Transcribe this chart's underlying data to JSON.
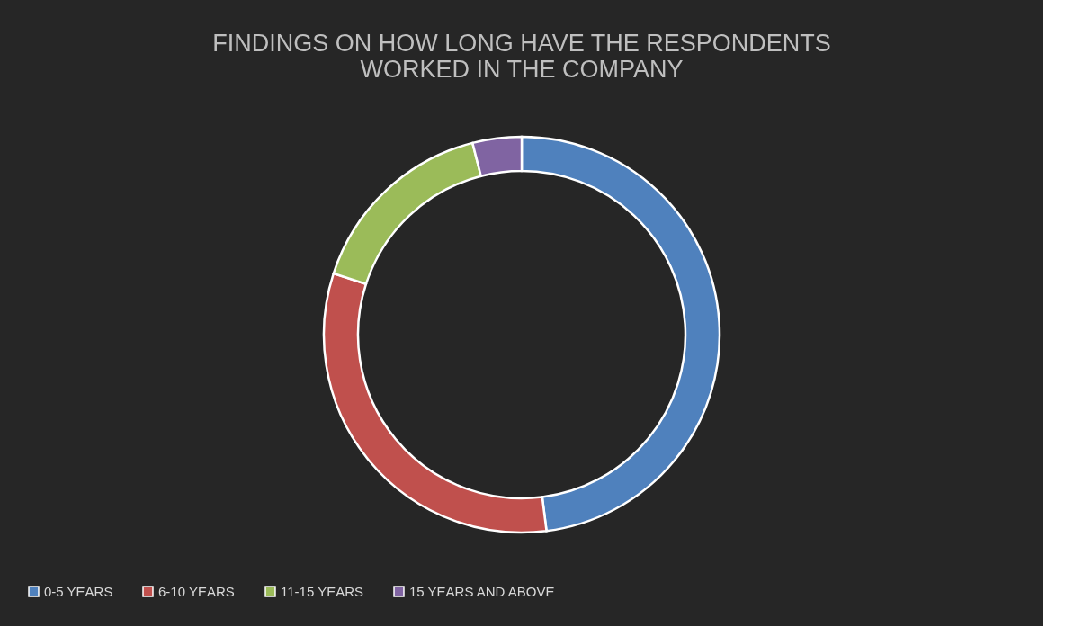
{
  "chart_data": {
    "type": "donut",
    "title": "FINDINGS ON HOW LONG HAVE THE RESPONDENTS WORKED IN THE COMPANY",
    "categories": [
      "0-5 YEARS",
      "6-10 YEARS",
      "11-15 YEARS",
      "15 YEARS AND ABOVE"
    ],
    "values": [
      48,
      32,
      16,
      4
    ],
    "colors": [
      "#4f81bd",
      "#c0504d",
      "#9bbb59",
      "#8064a2"
    ],
    "legend": "bottom"
  }
}
